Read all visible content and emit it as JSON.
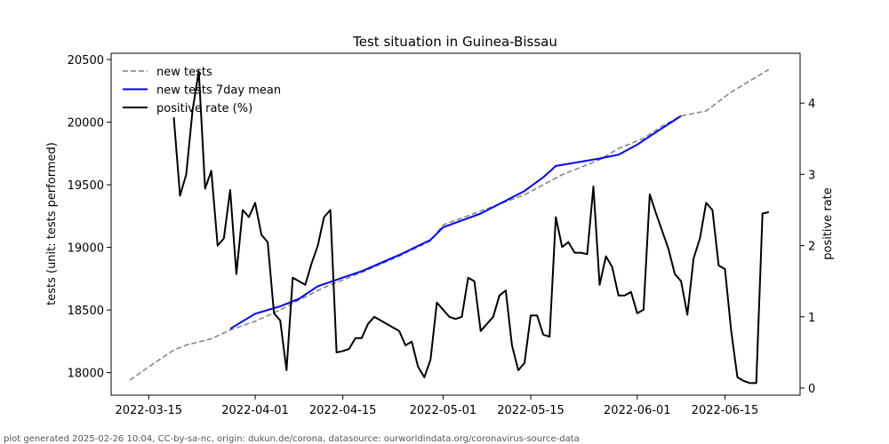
{
  "footer": "plot generated 2025-02-26 10:04, CC-by-sa-nc, origin: dukun.de/corona, datasource: ourworldindata.org/coronavirus-source-data",
  "chart_data": {
    "type": "line",
    "title": "Test situation in Guinea-Bissau",
    "ylabel": "tests (unit: tests performed)",
    "y2label": "positive rate",
    "xlim": [
      "2022-03-09",
      "2022-06-27"
    ],
    "ylim": [
      17820,
      20550
    ],
    "y2lim": [
      -0.1,
      4.7
    ],
    "x_ticks": [
      "2022-03-15",
      "2022-04-01",
      "2022-04-15",
      "2022-05-01",
      "2022-05-15",
      "2022-06-01",
      "2022-06-15"
    ],
    "y_ticks": [
      18000,
      18500,
      19000,
      19500,
      20000,
      20500
    ],
    "y2_ticks": [
      0,
      1,
      2,
      3,
      4
    ],
    "legend_position": "top-left",
    "colors": {
      "new_tests": "#808080",
      "mean7": "#0000ff",
      "positive_rate": "#000000"
    },
    "series": [
      {
        "name": "new tests",
        "axis": "left",
        "style": "dashed",
        "x": [
          "2022-03-12",
          "2022-03-16",
          "2022-03-19",
          "2022-03-21",
          "2022-03-25",
          "2022-03-28",
          "2022-04-01",
          "2022-04-05",
          "2022-04-08",
          "2022-04-12",
          "2022-04-18",
          "2022-04-24",
          "2022-04-29",
          "2022-05-01",
          "2022-05-07",
          "2022-05-14",
          "2022-05-17",
          "2022-05-20",
          "2022-05-26",
          "2022-05-29",
          "2022-06-02",
          "2022-06-05",
          "2022-06-08",
          "2022-06-12",
          "2022-06-16",
          "2022-06-22"
        ],
        "values": [
          17940,
          18080,
          18180,
          18220,
          18270,
          18340,
          18410,
          18500,
          18580,
          18680,
          18800,
          18930,
          19050,
          19180,
          19290,
          19420,
          19500,
          19580,
          19700,
          19790,
          19870,
          19970,
          20050,
          20090,
          20240,
          20420
        ]
      },
      {
        "name": "new tests 7day mean",
        "axis": "left",
        "style": "solid",
        "x": [
          "2022-03-28",
          "2022-04-01",
          "2022-04-05",
          "2022-04-08",
          "2022-04-11",
          "2022-04-18",
          "2022-04-24",
          "2022-04-29",
          "2022-05-01",
          "2022-05-07",
          "2022-05-14",
          "2022-05-17",
          "2022-05-19",
          "2022-05-26",
          "2022-05-29",
          "2022-06-01",
          "2022-06-04",
          "2022-06-08"
        ],
        "values": [
          18350,
          18470,
          18530,
          18590,
          18690,
          18810,
          18940,
          19060,
          19160,
          19270,
          19450,
          19560,
          19650,
          19710,
          19740,
          19820,
          19920,
          20050
        ]
      },
      {
        "name": "positive rate (%)",
        "axis": "right",
        "style": "solid",
        "x": [
          "2022-03-19",
          "2022-03-20",
          "2022-03-21",
          "2022-03-22",
          "2022-03-23",
          "2022-03-24",
          "2022-03-25",
          "2022-03-26",
          "2022-03-27",
          "2022-03-28",
          "2022-03-29",
          "2022-03-30",
          "2022-03-31",
          "2022-04-01",
          "2022-04-02",
          "2022-04-03",
          "2022-04-04",
          "2022-04-05",
          "2022-04-06",
          "2022-04-07",
          "2022-04-08",
          "2022-04-09",
          "2022-04-10",
          "2022-04-11",
          "2022-04-12",
          "2022-04-13",
          "2022-04-14",
          "2022-04-15",
          "2022-04-16",
          "2022-04-17",
          "2022-04-18",
          "2022-04-19",
          "2022-04-20",
          "2022-04-21",
          "2022-04-22",
          "2022-04-23",
          "2022-04-24",
          "2022-04-25",
          "2022-04-26",
          "2022-04-27",
          "2022-04-28",
          "2022-04-29",
          "2022-04-30",
          "2022-05-01",
          "2022-05-02",
          "2022-05-03",
          "2022-05-04",
          "2022-05-05",
          "2022-05-06",
          "2022-05-07",
          "2022-05-08",
          "2022-05-09",
          "2022-05-10",
          "2022-05-11",
          "2022-05-12",
          "2022-05-13",
          "2022-05-14",
          "2022-05-15",
          "2022-05-16",
          "2022-05-17",
          "2022-05-18",
          "2022-05-19",
          "2022-05-20",
          "2022-05-21",
          "2022-05-22",
          "2022-05-23",
          "2022-05-24",
          "2022-05-25",
          "2022-05-26",
          "2022-05-27",
          "2022-05-28",
          "2022-05-29",
          "2022-05-30",
          "2022-05-31",
          "2022-06-01",
          "2022-06-02",
          "2022-06-03",
          "2022-06-04",
          "2022-06-05",
          "2022-06-06",
          "2022-06-07",
          "2022-06-08",
          "2022-06-09",
          "2022-06-10",
          "2022-06-11",
          "2022-06-12",
          "2022-06-13",
          "2022-06-14",
          "2022-06-15",
          "2022-06-16",
          "2022-06-17",
          "2022-06-18",
          "2022-06-19",
          "2022-06-20",
          "2022-06-21",
          "2022-06-22"
        ],
        "values": [
          3.8,
          2.7,
          3.0,
          3.9,
          4.45,
          2.8,
          3.05,
          2.0,
          2.1,
          2.78,
          1.6,
          2.5,
          2.4,
          2.6,
          2.15,
          2.05,
          1.05,
          0.95,
          0.25,
          1.55,
          1.5,
          1.45,
          1.75,
          2.0,
          2.4,
          2.5,
          0.5,
          0.52,
          0.55,
          0.7,
          0.7,
          0.9,
          1.0,
          0.95,
          0.9,
          0.85,
          0.8,
          0.6,
          0.65,
          0.3,
          0.15,
          0.4,
          1.2,
          1.1,
          1.0,
          0.97,
          1.0,
          1.55,
          1.5,
          0.8,
          0.9,
          1.0,
          1.3,
          1.37,
          0.6,
          0.25,
          0.35,
          1.02,
          1.02,
          0.75,
          0.72,
          2.4,
          1.98,
          2.05,
          1.9,
          1.9,
          1.88,
          2.83,
          1.45,
          1.85,
          1.7,
          1.3,
          1.3,
          1.35,
          1.05,
          1.1,
          2.72,
          2.45,
          2.2,
          1.95,
          1.6,
          1.5,
          1.03,
          1.82,
          2.1,
          2.6,
          2.5,
          1.72,
          1.67,
          0.8,
          0.15,
          0.1,
          0.07,
          0.07,
          2.45,
          2.47
        ]
      }
    ]
  }
}
